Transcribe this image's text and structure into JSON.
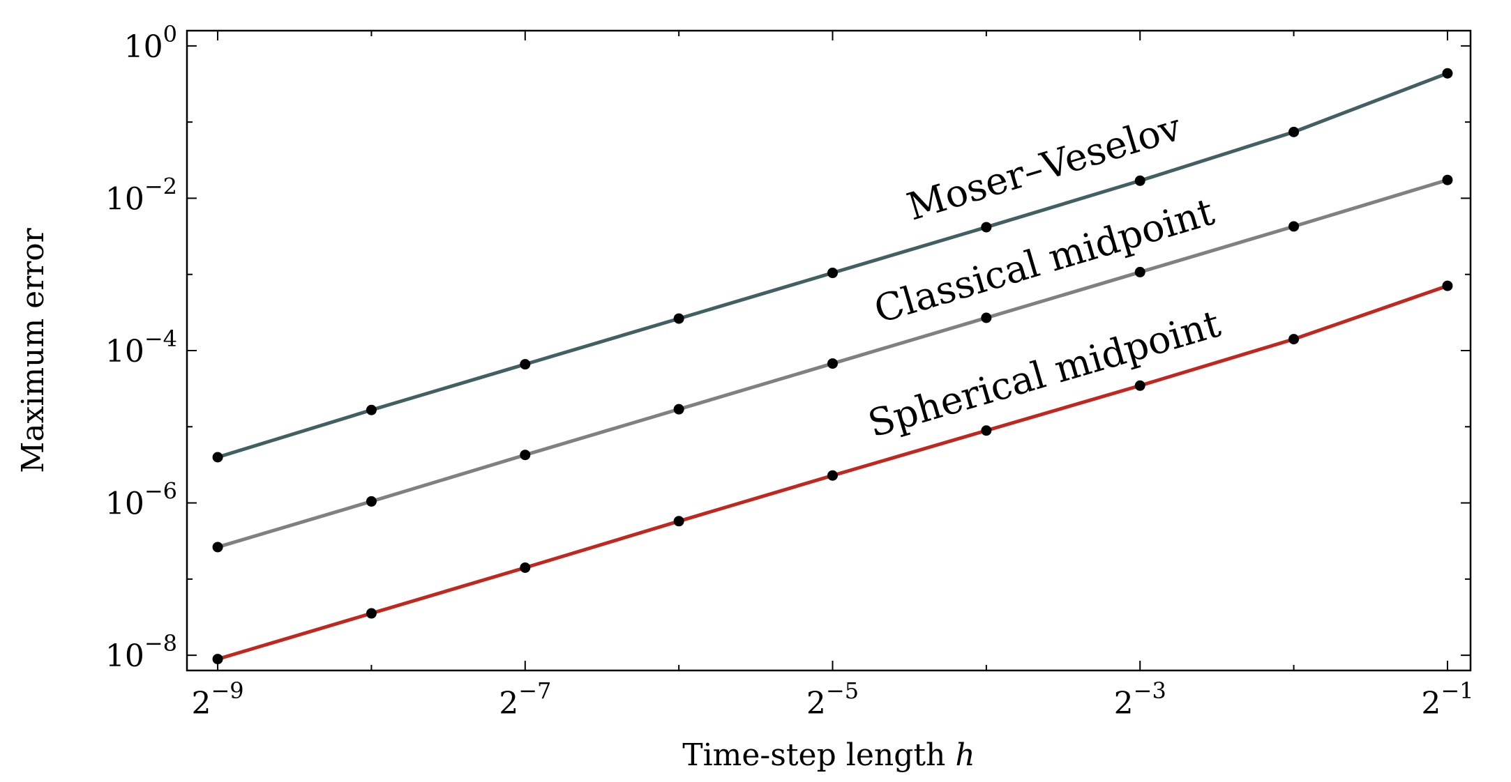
{
  "chart_data": {
    "type": "line",
    "xlabel": "Time-step length",
    "xlabel_var": "h",
    "ylabel": "Maximum error",
    "x_scale": "log2",
    "y_scale": "log10",
    "xlim_exp": [
      -9.2,
      -0.85
    ],
    "ylim_exp": [
      -8.2,
      0.2
    ],
    "x_ticks": [
      {
        "base": "2",
        "exp": "−9",
        "value_exp": -9
      },
      {
        "base": "2",
        "exp": "−7",
        "value_exp": -7
      },
      {
        "base": "2",
        "exp": "−5",
        "value_exp": -5
      },
      {
        "base": "2",
        "exp": "−3",
        "value_exp": -3
      },
      {
        "base": "2",
        "exp": "−1",
        "value_exp": -1
      }
    ],
    "x_minor_ticks_exp": [
      -8,
      -6,
      -4,
      -2
    ],
    "y_ticks": [
      {
        "base": "10",
        "exp": "0",
        "value_exp": 0
      },
      {
        "base": "10",
        "exp": "−2",
        "value_exp": -2
      },
      {
        "base": "10",
        "exp": "−4",
        "value_exp": -4
      },
      {
        "base": "10",
        "exp": "−6",
        "value_exp": -6
      },
      {
        "base": "10",
        "exp": "−8",
        "value_exp": -8
      }
    ],
    "x_exp": [
      -9,
      -8,
      -7,
      -6,
      -5,
      -4,
      -3,
      -2,
      -1
    ],
    "series": [
      {
        "name": "Moser–Veselov",
        "color": "#425f63",
        "log10_values": [
          -5.4,
          -4.78,
          -4.18,
          -3.58,
          -2.98,
          -2.38,
          -1.77,
          -1.13,
          -0.36
        ]
      },
      {
        "name": "Classical midpoint",
        "color": "#808080",
        "log10_values": [
          -6.58,
          -5.98,
          -5.37,
          -4.77,
          -4.17,
          -3.57,
          -2.97,
          -2.37,
          -1.76
        ]
      },
      {
        "name": "Spherical midpoint",
        "color": "#c0271e",
        "log10_values": [
          -8.05,
          -7.45,
          -6.85,
          -6.24,
          -5.64,
          -5.05,
          -4.46,
          -3.85,
          -3.15
        ]
      }
    ]
  }
}
